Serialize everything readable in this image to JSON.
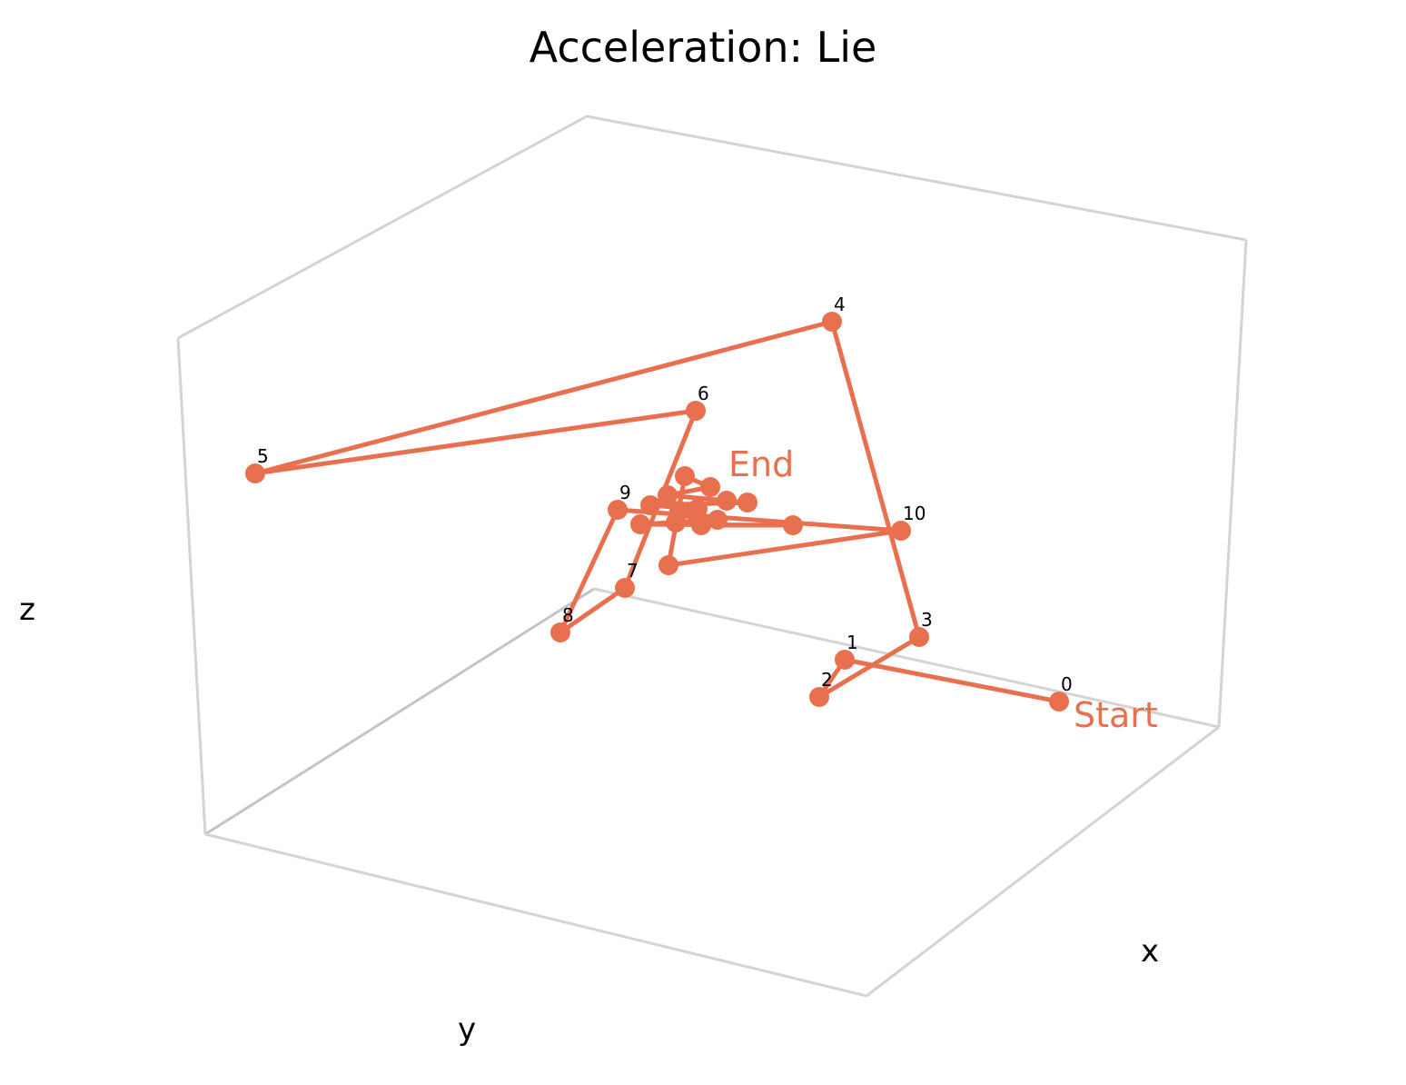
{
  "chart_data": {
    "type": "line3d",
    "title": "Acceleration: Lie",
    "xlabel": "x",
    "ylabel": "y",
    "zlabel": "z",
    "series_color": "#e8704f",
    "grid": false,
    "ticks": false,
    "annotations": {
      "start": "Start",
      "end": "End"
    },
    "labeled_points": [
      "0",
      "1",
      "2",
      "3",
      "4",
      "5",
      "6",
      "7",
      "8",
      "9",
      "10"
    ]
  }
}
